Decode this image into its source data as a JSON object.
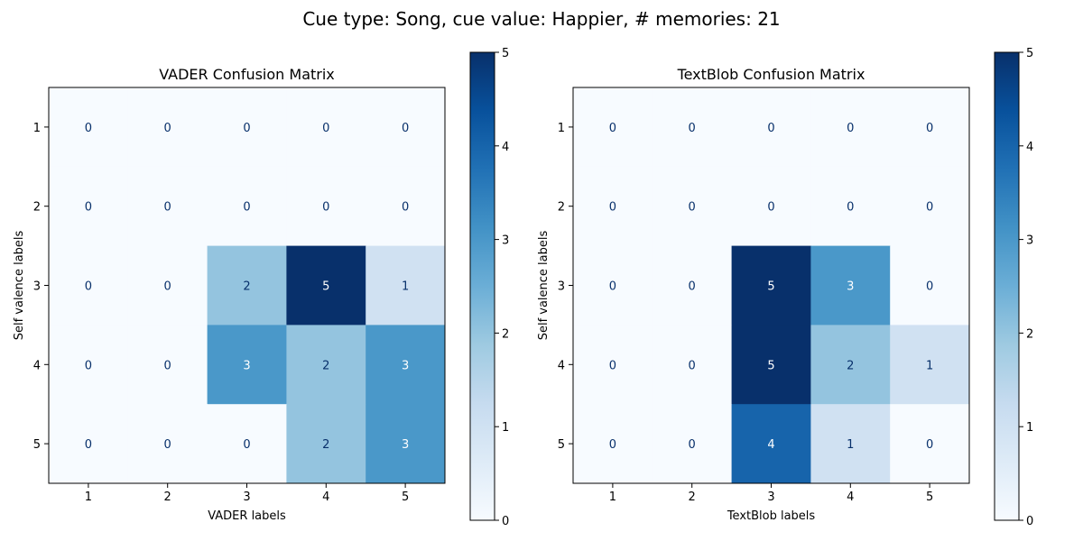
{
  "figure": {
    "suptitle": "Cue type: Song, cue value: Happier, # memories: 21"
  },
  "colormap": {
    "name": "Blues",
    "stops": [
      "#f7fbff",
      "#deebf7",
      "#c6dbef",
      "#9ecae1",
      "#6baed6",
      "#4292c6",
      "#2171b5",
      "#08519c",
      "#08306b"
    ],
    "text_light": "#ffffff",
    "text_dark": "#08306b"
  },
  "chart_data": [
    {
      "type": "heatmap",
      "title": "VADER Confusion Matrix",
      "xlabel": "VADER labels",
      "ylabel": "Self valence labels",
      "x_ticks": [
        "1",
        "2",
        "3",
        "4",
        "5"
      ],
      "y_ticks": [
        "1",
        "2",
        "3",
        "4",
        "5"
      ],
      "matrix": [
        [
          0,
          0,
          0,
          0,
          0
        ],
        [
          0,
          0,
          0,
          0,
          0
        ],
        [
          0,
          0,
          2,
          5,
          1
        ],
        [
          0,
          0,
          3,
          2,
          3
        ],
        [
          0,
          0,
          0,
          2,
          3
        ]
      ],
      "colorbar": {
        "range": [
          0,
          5
        ],
        "ticks": [
          "0",
          "1",
          "2",
          "3",
          "4",
          "5"
        ]
      }
    },
    {
      "type": "heatmap",
      "title": "TextBlob Confusion Matrix",
      "xlabel": "TextBlob labels",
      "ylabel": "Self valence labels",
      "x_ticks": [
        "1",
        "2",
        "3",
        "4",
        "5"
      ],
      "y_ticks": [
        "1",
        "2",
        "3",
        "4",
        "5"
      ],
      "matrix": [
        [
          0,
          0,
          0,
          0,
          0
        ],
        [
          0,
          0,
          0,
          0,
          0
        ],
        [
          0,
          0,
          5,
          3,
          0
        ],
        [
          0,
          0,
          5,
          2,
          1
        ],
        [
          0,
          0,
          4,
          1,
          0
        ]
      ],
      "colorbar": {
        "range": [
          0,
          5
        ],
        "ticks": [
          "0",
          "1",
          "2",
          "3",
          "4",
          "5"
        ]
      }
    }
  ]
}
